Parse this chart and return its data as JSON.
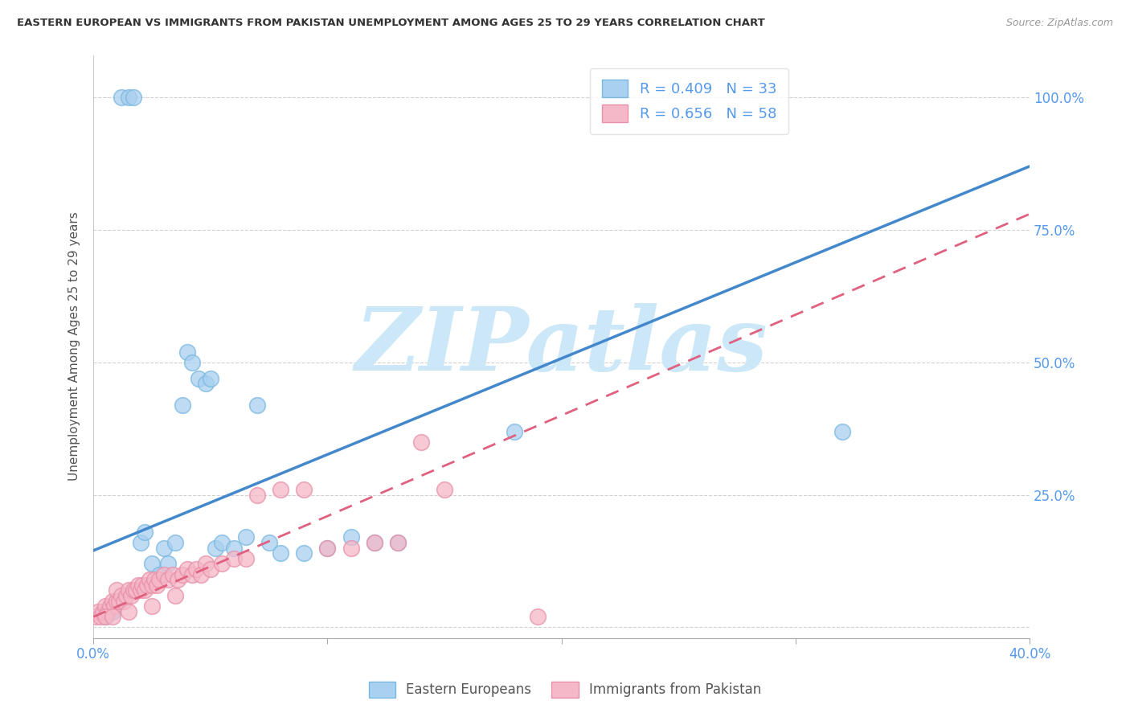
{
  "title": "EASTERN EUROPEAN VS IMMIGRANTS FROM PAKISTAN UNEMPLOYMENT AMONG AGES 25 TO 29 YEARS CORRELATION CHART",
  "source": "Source: ZipAtlas.com",
  "ylabel": "Unemployment Among Ages 25 to 29 years",
  "xlim": [
    0.0,
    0.4
  ],
  "ylim": [
    -0.02,
    1.08
  ],
  "xticks": [
    0.0,
    0.1,
    0.2,
    0.3,
    0.4
  ],
  "xticklabels": [
    "0.0%",
    "",
    "",
    "",
    "40.0%"
  ],
  "yticks": [
    0.0,
    0.25,
    0.5,
    0.75,
    1.0
  ],
  "yticklabels_right": [
    "",
    "25.0%",
    "50.0%",
    "75.0%",
    "100.0%"
  ],
  "blue_color": "#a8d0f0",
  "pink_color": "#f5b8c8",
  "blue_edge_color": "#7ab8e0",
  "pink_edge_color": "#e890a8",
  "blue_line_color": "#4488cc",
  "pink_line_color": "#e06080",
  "axis_label_color": "#5599ee",
  "title_color": "#333333",
  "watermark_color": "#cce8f8",
  "watermark_text": "ZIPatlas",
  "background_color": "#ffffff",
  "grid_color": "#cccccc",
  "blue_scatter_x": [
    0.012,
    0.015,
    0.017,
    0.02,
    0.022,
    0.025,
    0.028,
    0.03,
    0.032,
    0.035,
    0.038,
    0.04,
    0.042,
    0.045,
    0.048,
    0.05,
    0.052,
    0.055,
    0.06,
    0.065,
    0.07,
    0.075,
    0.08,
    0.09,
    0.1,
    0.11,
    0.12,
    0.13,
    0.18,
    0.32,
    0.005,
    0.008,
    0.01
  ],
  "blue_scatter_y": [
    1.0,
    1.0,
    1.0,
    0.16,
    0.18,
    0.12,
    0.1,
    0.15,
    0.12,
    0.16,
    0.42,
    0.52,
    0.5,
    0.47,
    0.46,
    0.47,
    0.15,
    0.16,
    0.15,
    0.17,
    0.42,
    0.16,
    0.14,
    0.14,
    0.15,
    0.17,
    0.16,
    0.16,
    0.37,
    0.37,
    0.02,
    0.03,
    0.05
  ],
  "pink_scatter_x": [
    0.001,
    0.002,
    0.003,
    0.004,
    0.005,
    0.006,
    0.007,
    0.008,
    0.009,
    0.01,
    0.01,
    0.011,
    0.012,
    0.013,
    0.014,
    0.015,
    0.016,
    0.017,
    0.018,
    0.019,
    0.02,
    0.021,
    0.022,
    0.023,
    0.024,
    0.025,
    0.026,
    0.027,
    0.028,
    0.03,
    0.032,
    0.034,
    0.036,
    0.038,
    0.04,
    0.042,
    0.044,
    0.046,
    0.048,
    0.05,
    0.055,
    0.06,
    0.065,
    0.07,
    0.08,
    0.09,
    0.1,
    0.11,
    0.12,
    0.13,
    0.14,
    0.15,
    0.19,
    0.005,
    0.008,
    0.015,
    0.025,
    0.035
  ],
  "pink_scatter_y": [
    0.02,
    0.03,
    0.02,
    0.03,
    0.04,
    0.03,
    0.04,
    0.05,
    0.04,
    0.05,
    0.07,
    0.05,
    0.06,
    0.05,
    0.06,
    0.07,
    0.06,
    0.07,
    0.07,
    0.08,
    0.07,
    0.08,
    0.07,
    0.08,
    0.09,
    0.08,
    0.09,
    0.08,
    0.09,
    0.1,
    0.09,
    0.1,
    0.09,
    0.1,
    0.11,
    0.1,
    0.11,
    0.1,
    0.12,
    0.11,
    0.12,
    0.13,
    0.13,
    0.25,
    0.26,
    0.26,
    0.15,
    0.15,
    0.16,
    0.16,
    0.35,
    0.26,
    0.02,
    0.02,
    0.02,
    0.03,
    0.04,
    0.06
  ],
  "blue_line_x": [
    0.0,
    0.4
  ],
  "blue_line_y": [
    0.145,
    0.87
  ],
  "pink_line_x": [
    0.0,
    0.4
  ],
  "pink_line_y": [
    0.02,
    0.78
  ],
  "legend_blue_label": "R = 0.409   N = 33",
  "legend_pink_label": "R = 0.656   N = 58",
  "bottom_legend_blue": "Eastern Europeans",
  "bottom_legend_pink": "Immigrants from Pakistan"
}
